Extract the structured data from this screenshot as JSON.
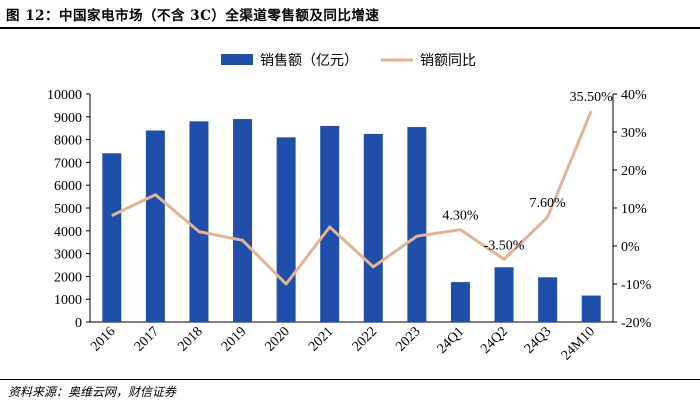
{
  "header": {
    "title": "图 12：中国家电市场（不含 3C）全渠道零售额及同比增速"
  },
  "footer": {
    "source": "资料来源：奥维云网，财信证券"
  },
  "chart_data": {
    "type": "bar",
    "categories": [
      "2016",
      "2017",
      "2018",
      "2019",
      "2020",
      "2021",
      "2022",
      "2023",
      "24Q1",
      "24Q2",
      "24Q3",
      "24M10"
    ],
    "series": [
      {
        "name": "销售额（亿元）",
        "type": "bar",
        "axis": "left",
        "color": "#1f4fa8",
        "values": [
          7400,
          8400,
          8800,
          8900,
          8100,
          8600,
          8250,
          8550,
          1750,
          2400,
          1960,
          1160
        ]
      },
      {
        "name": "销额同比",
        "type": "line",
        "axis": "right",
        "color": "#e2b394",
        "values": [
          8.0,
          13.5,
          3.8,
          1.5,
          -10.0,
          5.0,
          -5.5,
          2.6,
          4.3,
          -3.5,
          7.6,
          35.5
        ]
      }
    ],
    "y_left": {
      "ylim": [
        0,
        10000
      ],
      "ticks": [
        "0",
        "1000",
        "2000",
        "3000",
        "4000",
        "5000",
        "6000",
        "7000",
        "8000",
        "9000",
        "10000"
      ]
    },
    "y_right": {
      "ylim": [
        -20,
        40
      ],
      "ticks": [
        "-20%",
        "-10%",
        "0%",
        "10%",
        "20%",
        "30%",
        "40%"
      ]
    },
    "annotations": [
      {
        "index": 8,
        "text": "4.30%"
      },
      {
        "index": 9,
        "text": "-3.50%"
      },
      {
        "index": 10,
        "text": "7.60%"
      },
      {
        "index": 11,
        "text": "35.50%"
      }
    ],
    "legend": {
      "position": "top"
    },
    "grid": false
  }
}
